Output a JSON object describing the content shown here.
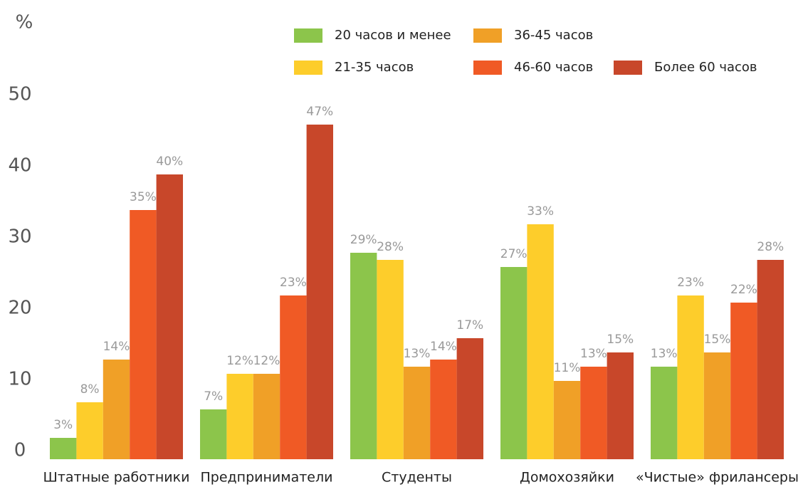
{
  "chart_data": {
    "type": "bar",
    "y_label": "%",
    "categories": [
      "Штатные работники",
      "Предприниматели",
      "Студенты",
      "Домохозяйки",
      "«Чистые» фрилансеры"
    ],
    "series": [
      {
        "name": "20 часов и менее",
        "color": "#8cc54b",
        "values": [
          3,
          7,
          29,
          27,
          13
        ],
        "value_labels": [
          "3%",
          "7%",
          "29%",
          "27%",
          "13%"
        ]
      },
      {
        "name": "21-35 часов",
        "color": "#fdcd2b",
        "values": [
          8,
          12,
          28,
          33,
          23
        ],
        "value_labels": [
          "8%",
          "12%",
          "28%",
          "33%",
          "23%"
        ]
      },
      {
        "name": "36-45 часов",
        "color": "#f0a027",
        "values": [
          14,
          12,
          13,
          11,
          15
        ],
        "value_labels": [
          "14%",
          "12%",
          "13%",
          "11%",
          "15%"
        ]
      },
      {
        "name": "46-60 часов",
        "color": "#f05a25",
        "values": [
          35,
          23,
          14,
          13,
          22
        ],
        "value_labels": [
          "35%",
          "23%",
          "14%",
          "13%",
          "22%"
        ]
      },
      {
        "name": "Более 60 часов",
        "color": "#c8472a",
        "values": [
          40,
          47,
          17,
          15,
          28
        ],
        "value_labels": [
          "40%",
          "47%",
          "17%",
          "15%",
          "28%"
        ]
      }
    ],
    "ylim": [
      0,
      50
    ],
    "yticks": [
      0,
      10,
      20,
      30,
      40,
      50
    ],
    "grid": false
  }
}
